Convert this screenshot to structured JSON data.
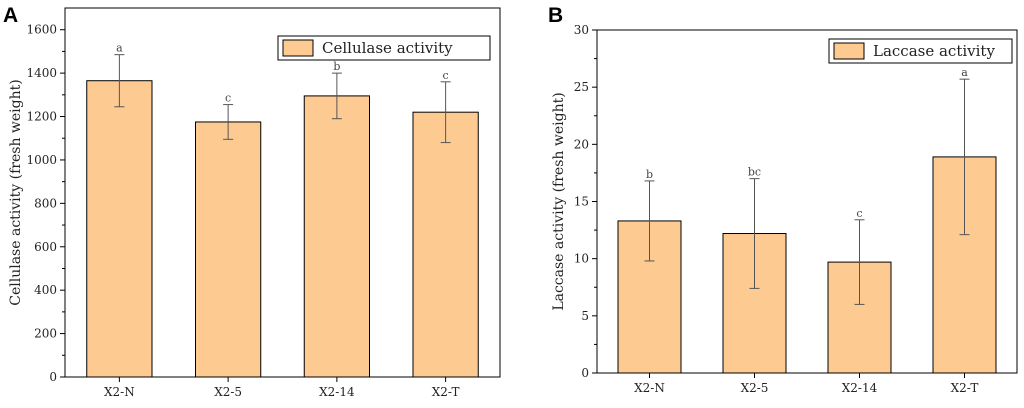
{
  "chart_data": [
    {
      "panel": "A",
      "type": "bar",
      "categories": [
        "X2-N",
        "X2-5",
        "X2-14",
        "X2-T"
      ],
      "values": [
        1365,
        1175,
        1295,
        1220
      ],
      "errors": [
        120,
        80,
        105,
        140
      ],
      "significance": [
        "a",
        "c",
        "b",
        "c"
      ],
      "legend": "Cellulase activity",
      "xlabel": "",
      "ylabel": "Cellulase activity (fresh weight)",
      "ylim": [
        0,
        1700
      ],
      "yticks": [
        0,
        200,
        400,
        600,
        800,
        1000,
        1200,
        1400,
        1600
      ],
      "bar_color": "#fdca92"
    },
    {
      "panel": "B",
      "type": "bar",
      "categories": [
        "X2-N",
        "X2-5",
        "X2-14",
        "X2-T"
      ],
      "values": [
        13.3,
        12.2,
        9.7,
        18.9
      ],
      "errors": [
        3.5,
        4.8,
        3.7,
        6.8
      ],
      "significance": [
        "b",
        "bc",
        "c",
        "a"
      ],
      "legend": "Laccase activity",
      "xlabel": "",
      "ylabel": "Laccase activity (fresh weight)",
      "ylim": [
        0,
        30
      ],
      "yticks": [
        0,
        5,
        10,
        15,
        20,
        25,
        30
      ],
      "bar_color": "#fdca92"
    }
  ]
}
